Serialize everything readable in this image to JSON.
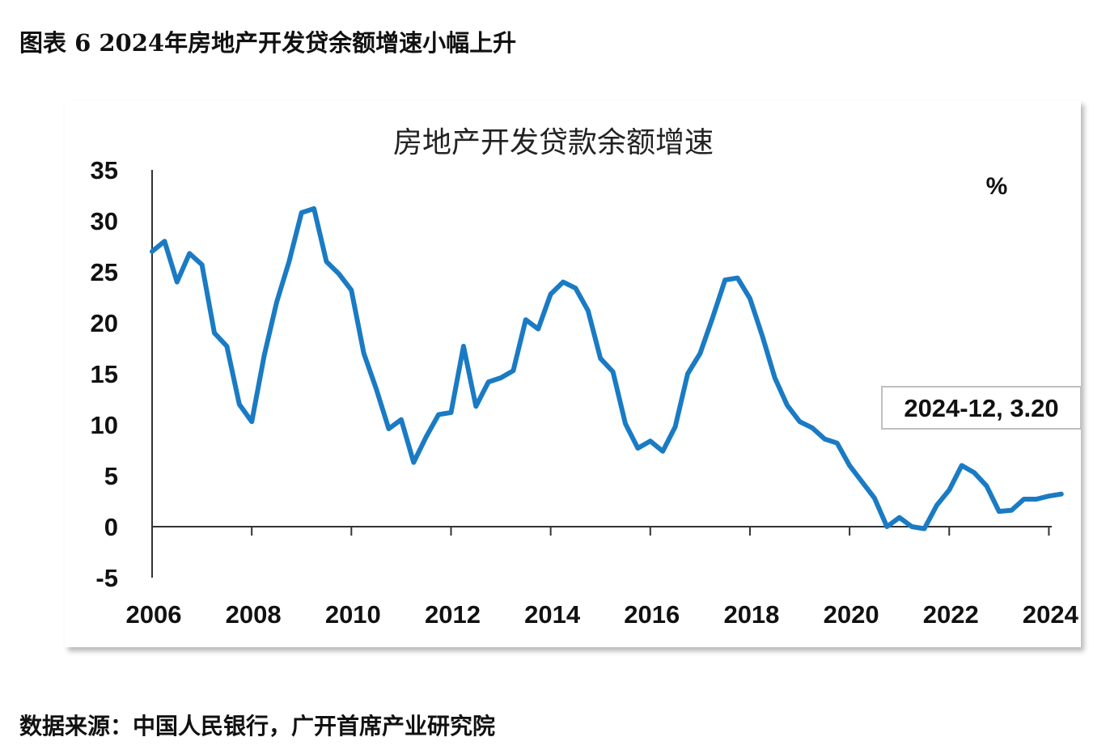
{
  "figure_title": "图表 6 2024年房地产开发贷余额增速小幅上升",
  "source": "数据来源：中国人民银行，广开首席产业研究院",
  "chart_data": {
    "type": "line",
    "title": "房地产开发贷款余额增速",
    "unit_label": "%",
    "ylim": [
      -5,
      35
    ],
    "yticks": [
      -5,
      0,
      5,
      10,
      15,
      20,
      25,
      30,
      35
    ],
    "xlim": [
      2006,
      2025
    ],
    "xticks": [
      2006,
      2008,
      2010,
      2012,
      2014,
      2016,
      2018,
      2020,
      2022,
      2024
    ],
    "line_color": "#1a7bc4",
    "grid": false,
    "annotation": {
      "text": "2024-12, 3.20",
      "x": 2024.92,
      "y": 3.2
    },
    "series": [
      {
        "x": [
          2006.0,
          2006.25,
          2006.5,
          2006.75,
          2007.0,
          2007.25,
          2007.5,
          2007.75,
          2008.0,
          2008.25,
          2008.5,
          2008.75,
          2009.0,
          2009.25,
          2009.5,
          2009.75,
          2010.0,
          2010.25,
          2010.5,
          2010.75,
          2011.0,
          2011.25,
          2011.5,
          2011.75,
          2012.0,
          2012.25,
          2012.5,
          2012.75,
          2013.0,
          2013.25,
          2013.5,
          2013.75,
          2014.0,
          2014.25,
          2014.5,
          2014.75,
          2015.0,
          2015.25,
          2015.5,
          2015.75,
          2016.0,
          2016.25,
          2016.5,
          2016.75,
          2017.0,
          2017.25,
          2017.5,
          2017.75,
          2018.0,
          2018.25,
          2018.5,
          2018.75,
          2019.0,
          2019.25,
          2019.5,
          2019.75,
          2020.0,
          2020.25,
          2020.5,
          2020.75,
          2021.0,
          2021.25,
          2021.5,
          2021.75,
          2022.0,
          2022.25,
          2022.5,
          2022.75,
          2023.0,
          2023.25,
          2023.5,
          2023.75,
          2024.0,
          2024.25
        ],
        "values": [
          27.0,
          28.0,
          24.0,
          26.8,
          25.7,
          19.0,
          17.7,
          12.0,
          10.3,
          16.8,
          22.0,
          26.0,
          30.8,
          31.2,
          26.0,
          24.8,
          23.2,
          17.0,
          13.5,
          9.6,
          10.5,
          6.3,
          8.8,
          11.0,
          11.2,
          17.7,
          11.8,
          14.2,
          14.6,
          15.3,
          20.3,
          19.4,
          22.8,
          24.0,
          23.4,
          21.2,
          16.5,
          15.2,
          10.1,
          7.7,
          8.4,
          7.4,
          9.8,
          15.0,
          17.0,
          20.5,
          24.2,
          24.4,
          22.4,
          18.7,
          14.6,
          11.9,
          10.3,
          9.7,
          8.6,
          8.2,
          6.0,
          4.4,
          2.8,
          0.0,
          0.9,
          0.0,
          -0.2,
          2.1,
          3.6,
          6.0,
          5.3,
          4.0,
          1.5,
          1.6,
          2.7,
          2.7,
          3.0,
          3.2
        ]
      }
    ]
  }
}
